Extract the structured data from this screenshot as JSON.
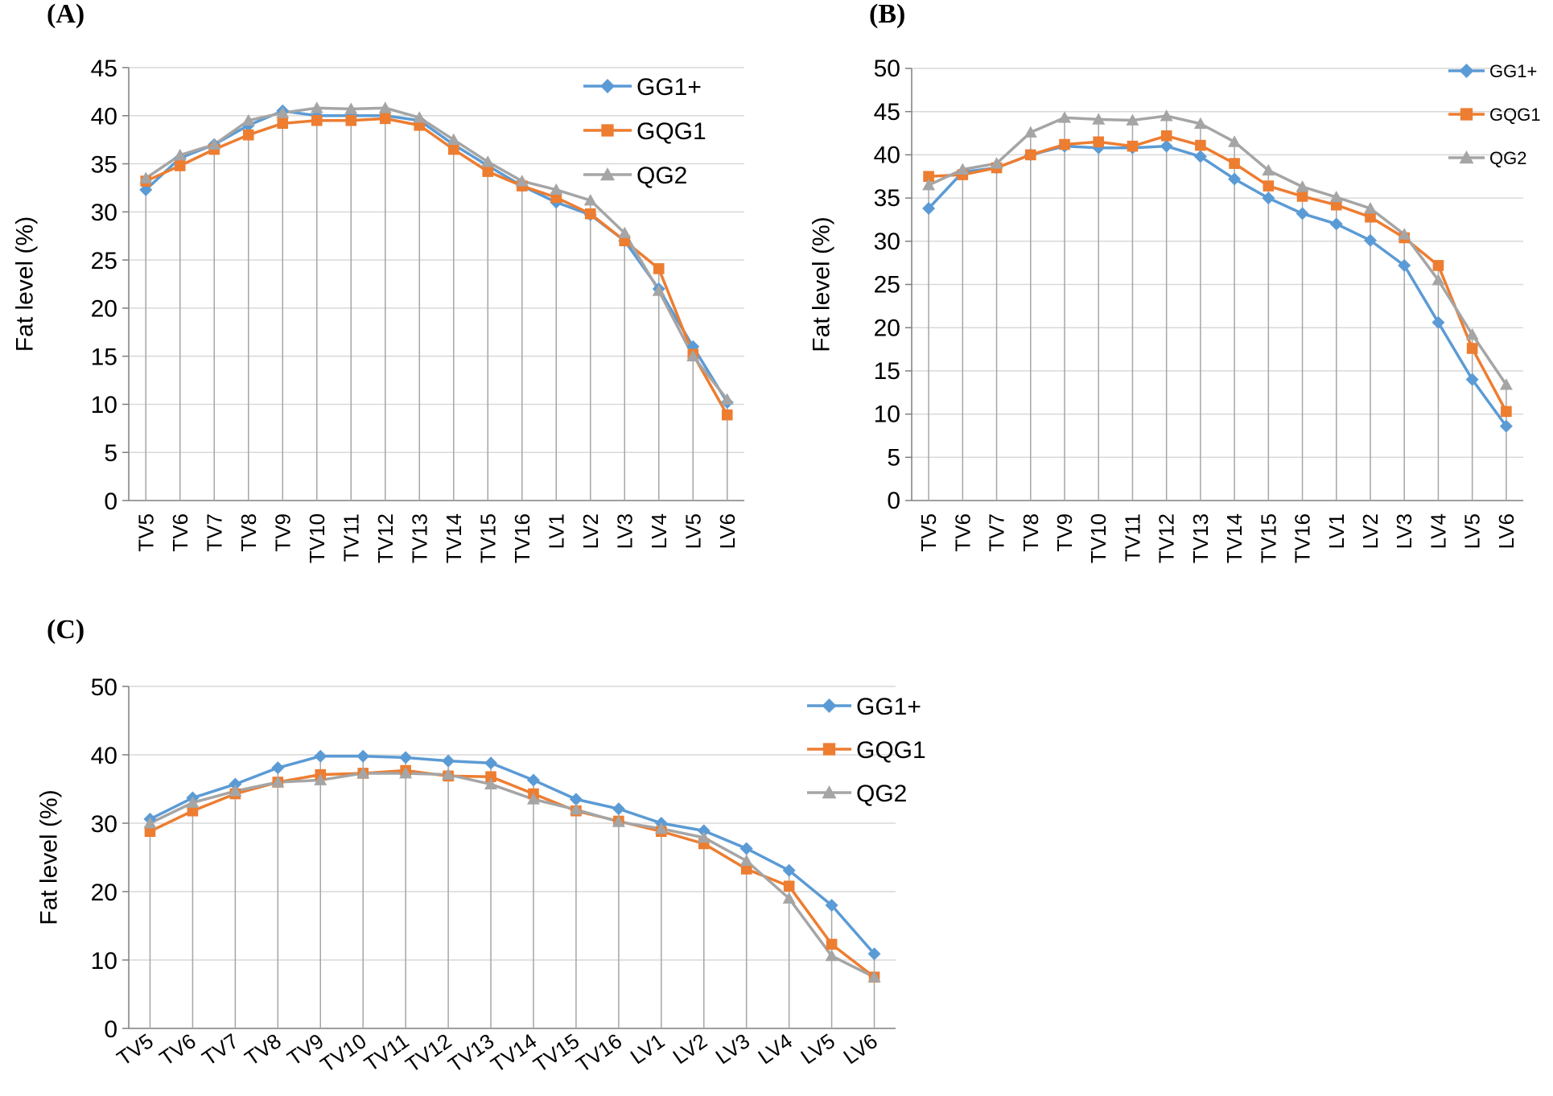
{
  "figure": {
    "panels": [
      "(A)",
      "(B)",
      "(C)"
    ]
  },
  "colors": {
    "GG1+": "#5b9bd5",
    "GQG1": "#ed7d31",
    "QG2": "#a5a5a5",
    "grid": "#d9d9d9",
    "dropline": "#a6a6a6",
    "axis": "#7f7f7f"
  },
  "chart_data": [
    {
      "type": "line",
      "panel": "(A)",
      "title": "",
      "xlabel": "",
      "ylabel": "Fat level (%)",
      "ylim": [
        0,
        45
      ],
      "yticks": [
        0,
        5,
        10,
        15,
        20,
        25,
        30,
        35,
        40,
        45
      ],
      "grid": true,
      "legend_position": "top-right",
      "categories": [
        "TV5",
        "TV6",
        "TV7",
        "TV8",
        "TV9",
        "TV10",
        "TV11",
        "TV12",
        "TV13",
        "TV14",
        "TV15",
        "TV16",
        "LV1",
        "LV2",
        "LV3",
        "LV4",
        "LV5",
        "LV6"
      ],
      "series": [
        {
          "name": "GG1+",
          "marker": "diamond",
          "values": [
            32.3,
            35.6,
            37.0,
            39.0,
            40.5,
            40.0,
            40.0,
            40.0,
            39.5,
            37.0,
            34.8,
            32.7,
            31.0,
            29.7,
            27.0,
            22.0,
            16.0,
            10.2
          ]
        },
        {
          "name": "GQG1",
          "marker": "square",
          "values": [
            33.2,
            34.8,
            36.5,
            38.0,
            39.2,
            39.5,
            39.5,
            39.7,
            39.0,
            36.5,
            34.2,
            32.7,
            31.5,
            29.8,
            27.0,
            24.1,
            15.2,
            8.9
          ]
        },
        {
          "name": "QG2",
          "marker": "triangle",
          "values": [
            33.5,
            35.9,
            37.0,
            39.5,
            40.3,
            40.8,
            40.7,
            40.8,
            39.8,
            37.5,
            35.2,
            33.2,
            32.3,
            31.2,
            27.8,
            21.8,
            15.0,
            10.5
          ]
        }
      ]
    },
    {
      "type": "line",
      "panel": "(B)",
      "title": "",
      "xlabel": "",
      "ylabel": "Fat level (%)",
      "ylim": [
        0,
        50
      ],
      "yticks": [
        0,
        5,
        10,
        15,
        20,
        25,
        30,
        35,
        40,
        45,
        50
      ],
      "grid": true,
      "legend_position": "top-right",
      "categories": [
        "TV5",
        "TV6",
        "TV7",
        "TV8",
        "TV9",
        "TV10",
        "TV11",
        "TV12",
        "TV13",
        "TV14",
        "TV15",
        "TV16",
        "LV1",
        "LV2",
        "LV3",
        "LV4",
        "LV5",
        "LV6"
      ],
      "series": [
        {
          "name": "GG1+",
          "marker": "diamond",
          "values": [
            33.8,
            38.0,
            38.5,
            40.0,
            41.0,
            40.8,
            40.8,
            41.0,
            39.8,
            37.2,
            35.0,
            33.2,
            32.0,
            30.1,
            27.2,
            20.6,
            14.0,
            8.6
          ]
        },
        {
          "name": "GQG1",
          "marker": "square",
          "values": [
            37.5,
            37.7,
            38.5,
            40.0,
            41.2,
            41.5,
            41.0,
            42.2,
            41.1,
            39.0,
            36.4,
            35.2,
            34.2,
            32.8,
            30.4,
            27.2,
            17.6,
            10.3
          ]
        },
        {
          "name": "QG2",
          "marker": "triangle",
          "values": [
            36.5,
            38.3,
            39.0,
            42.6,
            44.3,
            44.1,
            44.0,
            44.5,
            43.6,
            41.5,
            38.2,
            36.3,
            35.1,
            33.8,
            30.8,
            25.5,
            19.2,
            13.4
          ]
        }
      ]
    },
    {
      "type": "line",
      "panel": "(C)",
      "title": "",
      "xlabel": "",
      "ylabel": "Fat level (%)",
      "ylim": [
        0,
        50
      ],
      "yticks": [
        0,
        10,
        20,
        30,
        40,
        50
      ],
      "grid": true,
      "legend_position": "right",
      "categories": [
        "TV5",
        "TV6",
        "TV7",
        "TV8",
        "TV9",
        "TV10",
        "TV11",
        "TV12",
        "TV13",
        "TV14",
        "TV15",
        "TV16",
        "LV1",
        "LV2",
        "LV3",
        "LV4",
        "LV5",
        "LV6"
      ],
      "series": [
        {
          "name": "GG1+",
          "marker": "diamond",
          "values": [
            30.6,
            33.7,
            35.7,
            38.1,
            39.8,
            39.8,
            39.6,
            39.1,
            38.8,
            36.3,
            33.5,
            32.1,
            30.0,
            28.9,
            26.3,
            23.1,
            18.0,
            10.9
          ]
        },
        {
          "name": "GQG1",
          "marker": "square",
          "values": [
            28.8,
            31.8,
            34.3,
            36.0,
            37.1,
            37.3,
            37.7,
            36.9,
            36.8,
            34.3,
            31.8,
            30.3,
            28.8,
            27.0,
            23.3,
            20.8,
            12.3,
            7.5
          ]
        },
        {
          "name": "QG2",
          "marker": "triangle",
          "values": [
            30.0,
            33.0,
            34.7,
            36.0,
            36.3,
            37.3,
            37.3,
            37.1,
            35.7,
            33.5,
            32.0,
            30.2,
            29.2,
            27.9,
            24.5,
            19.0,
            10.6,
            7.5
          ]
        }
      ]
    }
  ]
}
